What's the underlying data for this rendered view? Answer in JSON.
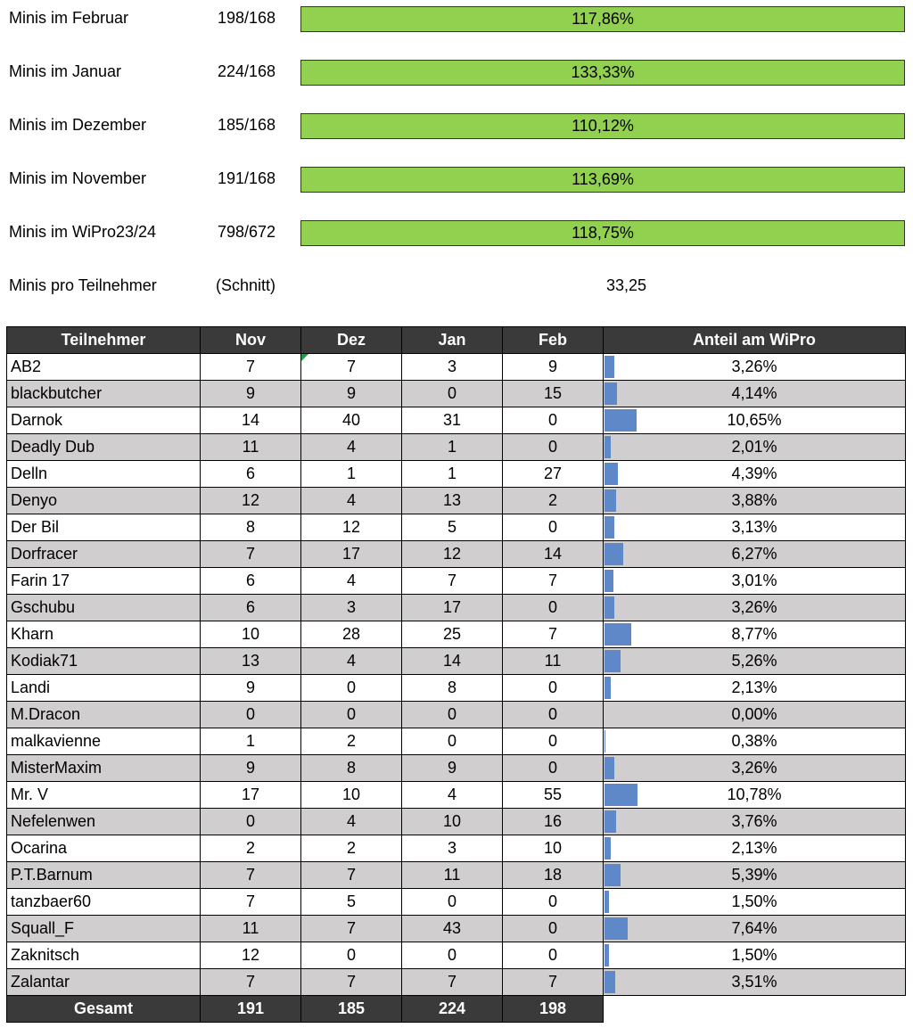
{
  "summary": [
    {
      "label": "Minis im Februar",
      "ratio": "198/168",
      "percent": "117,86%"
    },
    {
      "label": "Minis im Januar",
      "ratio": "224/168",
      "percent": "133,33%"
    },
    {
      "label": "Minis im Dezember",
      "ratio": "185/168",
      "percent": "110,12%"
    },
    {
      "label": "Minis im November",
      "ratio": "191/168",
      "percent": "113,69%"
    },
    {
      "label": "Minis im WiPro23/24",
      "ratio": "798/672",
      "percent": "118,75%"
    }
  ],
  "average": {
    "label": "Minis pro Teilnehmer",
    "note": "(Schnitt)",
    "value": "33,25"
  },
  "table": {
    "header": [
      "Teilnehmer",
      "Nov",
      "Dez",
      "Jan",
      "Feb",
      "Anteil am WiPro"
    ],
    "rows": [
      [
        "AB2",
        7,
        7,
        3,
        9,
        {
          "value": 3.26,
          "label": "3,26%"
        }
      ],
      [
        "blackbutcher",
        9,
        9,
        0,
        15,
        {
          "value": 4.14,
          "label": "4,14%"
        }
      ],
      [
        "Darnok",
        14,
        40,
        31,
        0,
        {
          "value": 10.65,
          "label": "10,65%"
        }
      ],
      [
        "Deadly Dub",
        11,
        4,
        1,
        0,
        {
          "value": 2.01,
          "label": "2,01%"
        }
      ],
      [
        "Delln",
        6,
        1,
        1,
        27,
        {
          "value": 4.39,
          "label": "4,39%"
        }
      ],
      [
        "Denyo",
        12,
        4,
        13,
        2,
        {
          "value": 3.88,
          "label": "3,88%"
        }
      ],
      [
        "Der Bil",
        8,
        12,
        5,
        0,
        {
          "value": 3.13,
          "label": "3,13%"
        }
      ],
      [
        "Dorfracer",
        7,
        17,
        12,
        14,
        {
          "value": 6.27,
          "label": "6,27%"
        }
      ],
      [
        "Farin 17",
        6,
        4,
        7,
        7,
        {
          "value": 3.01,
          "label": "3,01%"
        }
      ],
      [
        "Gschubu",
        6,
        3,
        17,
        0,
        {
          "value": 3.26,
          "label": "3,26%"
        }
      ],
      [
        "Kharn",
        10,
        28,
        25,
        7,
        {
          "value": 8.77,
          "label": "8,77%"
        }
      ],
      [
        "Kodiak71",
        13,
        4,
        14,
        11,
        {
          "value": 5.26,
          "label": "5,26%"
        }
      ],
      [
        "Landi",
        9,
        0,
        8,
        0,
        {
          "value": 2.13,
          "label": "2,13%"
        }
      ],
      [
        "M.Dracon",
        0,
        0,
        0,
        0,
        {
          "value": 0,
          "label": "0,00%"
        }
      ],
      [
        "malkavienne",
        1,
        2,
        0,
        0,
        {
          "value": 0.38,
          "label": "0,38%"
        }
      ],
      [
        "MisterMaxim",
        9,
        8,
        9,
        0,
        {
          "value": 3.26,
          "label": "3,26%"
        }
      ],
      [
        "Mr. V",
        17,
        10,
        4,
        55,
        {
          "value": 10.78,
          "label": "10,78%"
        }
      ],
      [
        "Nefelenwen",
        0,
        4,
        10,
        16,
        {
          "value": 3.76,
          "label": "3,76%"
        }
      ],
      [
        "Ocarina",
        2,
        2,
        3,
        10,
        {
          "value": 2.13,
          "label": "2,13%"
        }
      ],
      [
        "P.T.Barnum",
        7,
        7,
        11,
        18,
        {
          "value": 5.39,
          "label": "5,39%"
        }
      ],
      [
        "tanzbaer60",
        7,
        5,
        0,
        0,
        {
          "value": 1.5,
          "label": "1,50%"
        }
      ],
      [
        "Squall_F",
        11,
        7,
        43,
        0,
        {
          "value": 7.64,
          "label": "7,64%"
        }
      ],
      [
        "Zaknitsch",
        12,
        0,
        0,
        0,
        {
          "value": 1.5,
          "label": "1,50%"
        }
      ],
      [
        "Zalantar",
        7,
        7,
        7,
        7,
        {
          "value": 3.51,
          "label": "3,51%"
        }
      ]
    ],
    "footer": [
      "Gesamt",
      191,
      185,
      224,
      198
    ]
  }
}
